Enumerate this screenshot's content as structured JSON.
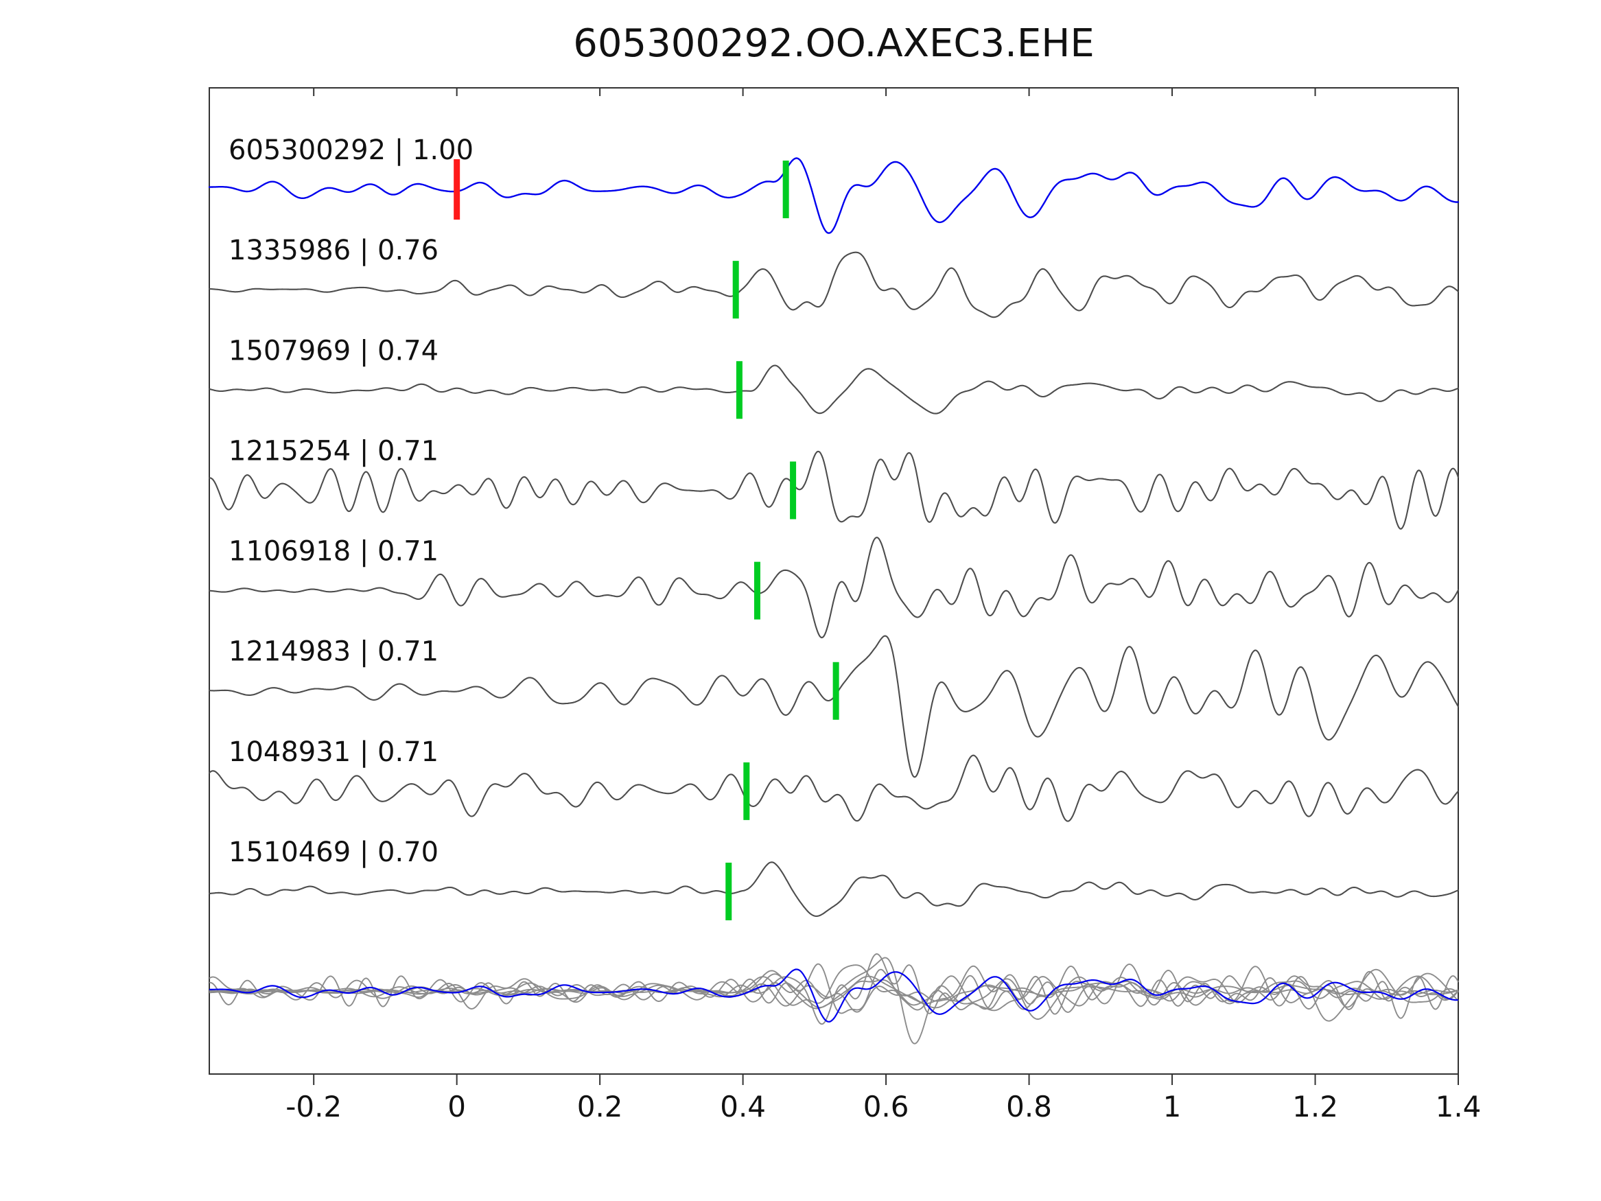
{
  "chart_data": {
    "type": "line",
    "title": "605300292.OO.AXEC3.EHE",
    "xlabel": "",
    "ylabel": "",
    "xlim": [
      -0.346,
      1.4
    ],
    "x_ticks": [
      -0.2,
      0,
      0.2,
      0.4,
      0.6,
      0.8,
      1,
      1.2,
      1.4
    ],
    "x_tick_labels": [
      "-0.2",
      "0",
      "0.2",
      "0.4",
      "0.6",
      "0.8",
      "1",
      "1.2",
      "1.4"
    ],
    "grid": false,
    "legend": "none",
    "colors": {
      "template": "#0000ee",
      "match": "#4d4d4d",
      "overlay": "#8c8c8c",
      "pick": "#00cc22",
      "origin": "#ff1a1a",
      "axis": "#333333",
      "text": "#111111"
    },
    "description": "Template waveform (blue, top) with best-correlated detections stacked below; green bars mark phase picks, red bar marks template zero time; bottom row overlays all traces (grey) with the template (blue).",
    "traces": [
      {
        "id": "605300292",
        "corr": "1.00",
        "label": "605300292 | 1.00",
        "color_role": "template",
        "pick": 0.46,
        "origin": 0.0,
        "seed": 3,
        "quiet_until": -0.55,
        "noise": 0.15,
        "onset": 0.44,
        "amp": 1.0,
        "freq": 7.0,
        "decay": 3.0,
        "coda": 0.3,
        "coda_freq": 3.2,
        "scale": 1.0
      },
      {
        "id": "1335986",
        "corr": "0.76",
        "label": "1335986 | 0.76",
        "color_role": "match",
        "pick": 0.39,
        "origin": null,
        "seed": 7,
        "quiet_until": -0.12,
        "noise": 0.18,
        "onset": 0.4,
        "amp": 1.0,
        "freq": 8.0,
        "decay": 4.0,
        "coda": 0.3,
        "coda_freq": 3.0,
        "scale": 1.0
      },
      {
        "id": "1507969",
        "corr": "0.74",
        "label": "1507969 | 0.74",
        "color_role": "match",
        "pick": 0.395,
        "origin": null,
        "seed": 5,
        "quiet_until": -0.55,
        "noise": 0.07,
        "onset": 0.41,
        "amp": 1.0,
        "freq": 6.5,
        "decay": 4.5,
        "coda": 0.12,
        "coda_freq": 3.0,
        "scale": 1.0
      },
      {
        "id": "1215254",
        "corr": "0.71",
        "label": "1215254 | 0.71",
        "color_role": "match",
        "pick": 0.47,
        "origin": null,
        "seed": 9,
        "quiet_until": -0.55,
        "noise": 0.32,
        "onset": 0.46,
        "amp": 0.9,
        "freq": 7.0,
        "decay": 3.8,
        "coda": 0.32,
        "coda_freq": 3.4,
        "scale": 1.0
      },
      {
        "id": "1106918",
        "corr": "0.71",
        "label": "1106918 | 0.71",
        "color_role": "match",
        "pick": 0.42,
        "origin": null,
        "seed": 11,
        "quiet_until": -0.18,
        "noise": 0.22,
        "onset": 0.43,
        "amp": 1.0,
        "freq": 7.5,
        "decay": 4.2,
        "coda": 0.24,
        "coda_freq": 3.0,
        "scale": 1.0
      },
      {
        "id": "1214983",
        "corr": "0.71",
        "label": "1214983 | 0.71",
        "color_role": "match",
        "pick": 0.53,
        "origin": null,
        "seed": 13,
        "quiet_until": 0.07,
        "noise": 0.5,
        "onset": 0.54,
        "amp": 0.9,
        "freq": 5.5,
        "decay": 2.0,
        "coda": 0.55,
        "coda_freq": 2.2,
        "scale": 1.15
      },
      {
        "id": "1048931",
        "corr": "0.71",
        "label": "1048931 | 0.71",
        "color_role": "match",
        "pick": 0.405,
        "origin": null,
        "seed": 17,
        "quiet_until": -0.55,
        "noise": 0.3,
        "onset": 0.42,
        "amp": 0.9,
        "freq": 7.0,
        "decay": 3.8,
        "coda": 0.32,
        "coda_freq": 3.1,
        "scale": 1.0
      },
      {
        "id": "1510469",
        "corr": "0.70",
        "label": "1510469 | 0.70",
        "color_role": "match",
        "pick": 0.38,
        "origin": null,
        "seed": 19,
        "quiet_until": -0.55,
        "noise": 0.07,
        "onset": 0.4,
        "amp": 1.05,
        "freq": 6.0,
        "decay": 4.5,
        "coda": 0.1,
        "coda_freq": 3.0,
        "scale": 1.0
      }
    ],
    "overlay_row": {
      "content": "all matched traces superimposed in grey with template in blue",
      "amplitude_scale": 0.7
    }
  }
}
